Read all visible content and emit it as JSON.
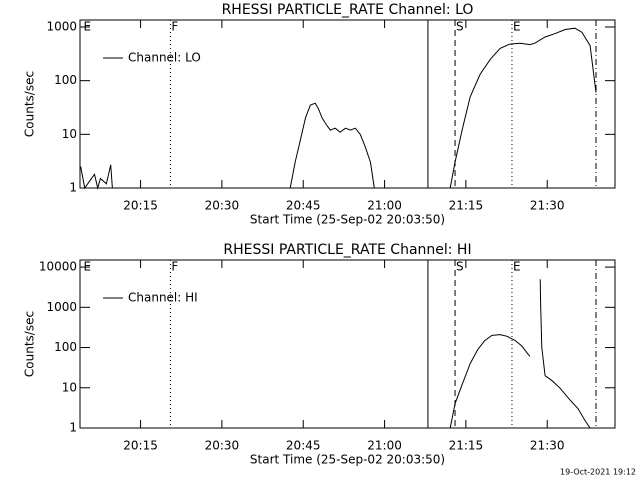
{
  "chart_data": [
    {
      "type": "line",
      "title": "RHESSI PARTICLE_RATE Channel: LO",
      "x_label": "Start Time (25-Sep-02 20:03:50)",
      "y_label": "Counts/sec",
      "log_y": true,
      "xlim": [
        1203.83,
        1302.5
      ],
      "ylim": [
        1,
        1350
      ],
      "xticks": [
        {
          "value": 1215,
          "label": "20:15"
        },
        {
          "value": 1230,
          "label": "20:30"
        },
        {
          "value": 1245,
          "label": "20:45"
        },
        {
          "value": 1260,
          "label": "21:00"
        },
        {
          "value": 1275,
          "label": "21:15"
        },
        {
          "value": 1290,
          "label": "21:30"
        }
      ],
      "yticks": [
        1,
        10,
        100,
        1000
      ],
      "legend": "upper left",
      "markers": [
        {
          "x": 1204.3,
          "label": "E",
          "style": "none"
        },
        {
          "x": 1220.5,
          "label": "F",
          "style": "dotted"
        },
        {
          "x": 1268.0,
          "style": "solid"
        },
        {
          "x": 1273.0,
          "label": "S",
          "style": "dashed"
        },
        {
          "x": 1283.5,
          "label": "E",
          "style": "dotted"
        },
        {
          "x": 1299.0,
          "style": "dashdot"
        }
      ],
      "series": [
        {
          "name": "Channel: LO",
          "color": "#000000",
          "x": [
            1203.95,
            1204.7,
            1206.5,
            1207.1,
            1207.6,
            1208.7,
            1209.5,
            1209.8,
            1210.0,
            1242.6,
            1243.5,
            1244.5,
            1245.4,
            1246.3,
            1247.2,
            1247.8,
            1248.5,
            1249.3,
            1250.0,
            1250.9,
            1251.8,
            1252.8,
            1253.7,
            1254.6,
            1255.5,
            1256.4,
            1257.4,
            1258.1,
            1260.0,
            1272.1,
            1273.0,
            1274.3,
            1275.8,
            1277.6,
            1279.5,
            1281.3,
            1283.1,
            1285.0,
            1286.8,
            1287.7,
            1289.6,
            1291.4,
            1293.3,
            1295.1,
            1296.4,
            1297.9,
            1299.0
          ],
          "values": [
            2.5,
            1,
            1.8,
            1,
            1.5,
            1.2,
            2.7,
            1,
            null,
            1,
            3,
            8,
            20,
            35,
            38,
            30,
            20,
            15,
            12,
            13,
            11,
            13,
            12,
            13,
            10,
            6,
            3,
            1,
            null,
            1,
            3,
            12,
            50,
            130,
            250,
            400,
            480,
            500,
            470,
            500,
            650,
            750,
            900,
            950,
            800,
            450,
            60
          ]
        }
      ]
    },
    {
      "type": "line",
      "title": "RHESSI PARTICLE_RATE Channel: HI",
      "x_label": "Start Time (25-Sep-02 20:03:50)",
      "y_label": "Counts/sec",
      "log_y": true,
      "xlim": [
        1203.83,
        1302.5
      ],
      "ylim": [
        1,
        15000
      ],
      "xticks": [
        {
          "value": 1215,
          "label": "20:15"
        },
        {
          "value": 1230,
          "label": "20:30"
        },
        {
          "value": 1245,
          "label": "20:45"
        },
        {
          "value": 1260,
          "label": "21:00"
        },
        {
          "value": 1275,
          "label": "21:15"
        },
        {
          "value": 1290,
          "label": "21:30"
        }
      ],
      "yticks": [
        1,
        10,
        100,
        1000,
        10000
      ],
      "legend": "upper left",
      "markers": [
        {
          "x": 1204.3,
          "label": "E",
          "style": "none"
        },
        {
          "x": 1220.5,
          "label": "F",
          "style": "dotted"
        },
        {
          "x": 1268.0,
          "style": "solid"
        },
        {
          "x": 1273.0,
          "label": "S",
          "style": "dashed"
        },
        {
          "x": 1283.5,
          "label": "E",
          "style": "dotted"
        },
        {
          "x": 1299.0,
          "style": "dashdot"
        }
      ],
      "series": [
        {
          "name": "Channel: HI",
          "color": "#000000",
          "x": [
            1272.1,
            1273.0,
            1274.3,
            1275.8,
            1277.2,
            1278.5,
            1279.8,
            1281.3,
            1282.6,
            1284.1,
            1285.3,
            1286.8,
            1287.5,
            1288.7,
            1288.8,
            1289.0,
            1289.6,
            1290.9,
            1292.3,
            1294.2,
            1295.7,
            1297.0,
            1297.9
          ],
          "values": [
            1,
            4,
            12,
            40,
            90,
            150,
            200,
            210,
            190,
            150,
            110,
            60,
            null,
            5000,
            1000,
            100,
            20,
            15,
            10,
            5,
            3,
            1.5,
            1
          ]
        }
      ]
    }
  ],
  "footer": "19-Oct-2021 19:12"
}
